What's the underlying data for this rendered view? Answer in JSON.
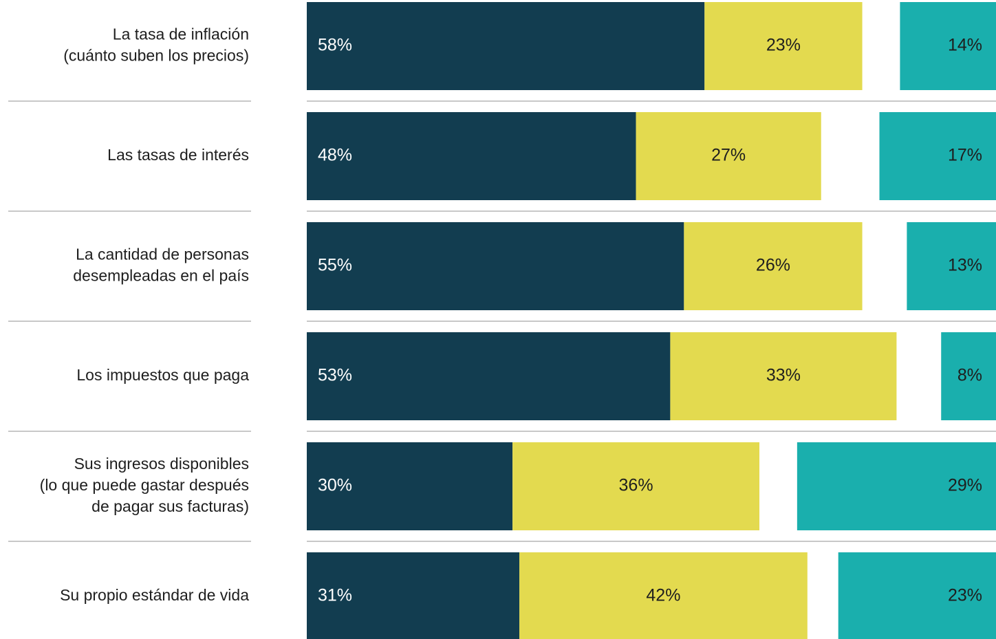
{
  "chart_data": {
    "type": "stacked-bar-horizontal",
    "categories": [
      [
        "La tasa de inflación",
        "(cuánto suben los precios)"
      ],
      [
        "Las tasas de interés"
      ],
      [
        "La cantidad de personas",
        "desempleadas en el país"
      ],
      [
        "Los impuestos que paga"
      ],
      [
        "Sus ingresos disponibles",
        "(lo que puede gastar después",
        "de pagar sus facturas)"
      ],
      [
        "Su propio estándar de vida"
      ]
    ],
    "series": [
      {
        "color": "#123d50",
        "values": [
          58,
          48,
          55,
          53,
          30,
          31
        ],
        "value_labels": [
          "58%",
          "48%",
          "55%",
          "53%",
          "30%",
          "31%"
        ]
      },
      {
        "color": "#e3da4f",
        "values": [
          23,
          27,
          26,
          33,
          36,
          42
        ],
        "value_labels": [
          "23%",
          "27%",
          "26%",
          "33%",
          "36%",
          "42%"
        ]
      },
      {
        "color": "#1aafad",
        "values": [
          14,
          17,
          13,
          8,
          29,
          23
        ],
        "value_labels": [
          "14%",
          "17%",
          "13%",
          "8%",
          "29%",
          "23%"
        ]
      }
    ]
  }
}
